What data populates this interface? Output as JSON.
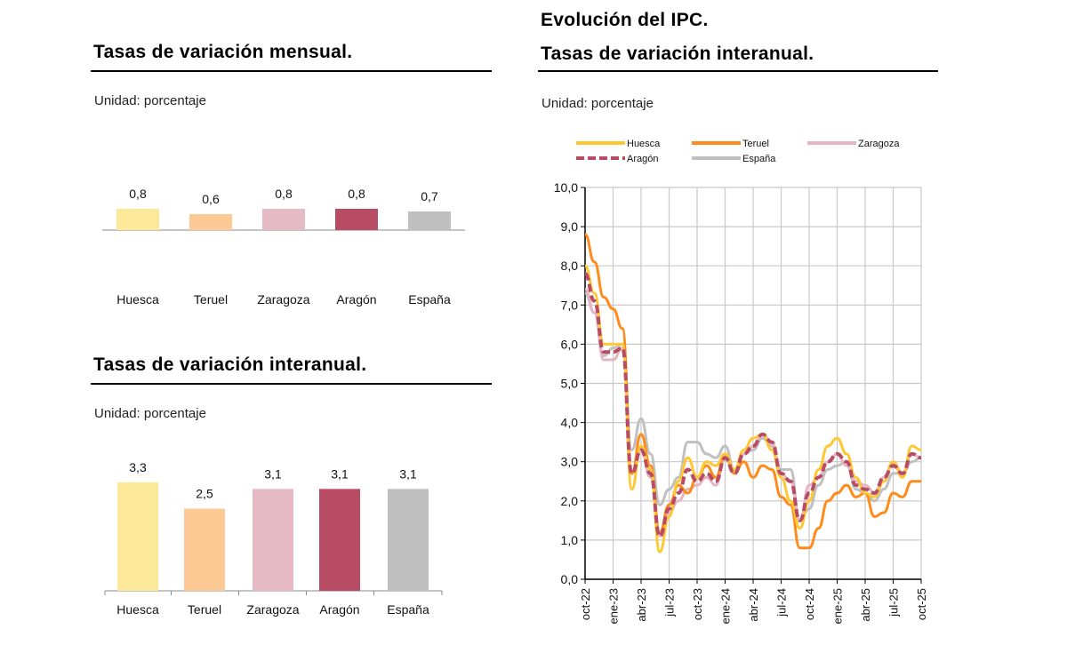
{
  "left_top": {
    "title": "Tasas de variación mensual.",
    "unit": "Unidad: porcentaje"
  },
  "left_bottom": {
    "title": "Tasas de variación interanual.",
    "unit": "Unidad: porcentaje"
  },
  "right": {
    "title1": "Evolución del IPC.",
    "title2": "Tasas de variación interanual.",
    "unit": "Unidad: porcentaje"
  },
  "colors": {
    "Huesca": "#fbe899",
    "Teruel": "#fdc994",
    "Zaragoza": "#e5bac5",
    "Aragón": "#b84c65",
    "España": "#bfbfbf"
  },
  "line_colors": {
    "Huesca": "#ffc832",
    "Teruel": "#ff8c1a",
    "Zaragoza": "#e6b4c2",
    "Aragón": "#b84c65",
    "España": "#c0c0c0"
  },
  "chart_data": [
    {
      "type": "bar",
      "title": "Tasas de variación mensual.",
      "categories": [
        "Huesca",
        "Teruel",
        "Zaragoza",
        "Aragón",
        "España"
      ],
      "values": [
        0.8,
        0.6,
        0.8,
        0.8,
        0.7
      ],
      "value_labels": [
        "0,8",
        "0,6",
        "0,8",
        "0,8",
        "0,7"
      ]
    },
    {
      "type": "bar",
      "title": "Tasas de variación interanual.",
      "categories": [
        "Huesca",
        "Teruel",
        "Zaragoza",
        "Aragón",
        "España"
      ],
      "values": [
        3.3,
        2.5,
        3.1,
        3.1,
        3.1
      ],
      "value_labels": [
        "3,3",
        "2,5",
        "3,1",
        "3,1",
        "3,1"
      ]
    },
    {
      "type": "line",
      "title": "Evolución del IPC. Tasas de variación interanual.",
      "ylim": [
        0,
        10
      ],
      "yticks": [
        "0,0",
        "1,0",
        "2,0",
        "3,0",
        "4,0",
        "5,0",
        "6,0",
        "7,0",
        "8,0",
        "9,0",
        "10,0"
      ],
      "xticks": [
        "oct-22",
        "ene-23",
        "abr-23",
        "jul-23",
        "oct-23",
        "ene-24",
        "abr-24",
        "jul-24",
        "oct-24",
        "ene-25",
        "abr-25",
        "jul-25",
        "oct-25"
      ],
      "x_range": [
        "oct-22",
        "oct-25"
      ],
      "frequency": "monthly",
      "grid": true,
      "legend": "top",
      "series": [
        {
          "name": "Huesca",
          "values": [
            8.0,
            7.3,
            6.0,
            6.0,
            6.0,
            2.3,
            3.4,
            2.8,
            0.7,
            1.6,
            2.5,
            3.1,
            2.6,
            3.0,
            2.9,
            3.2,
            2.8,
            3.3,
            3.6,
            3.7,
            3.3,
            2.6,
            2.0,
            1.3,
            2.0,
            2.8,
            3.4,
            3.6,
            3.2,
            2.6,
            2.2,
            2.1,
            2.5,
            3.0,
            2.6,
            3.4,
            3.3
          ]
        },
        {
          "name": "Teruel",
          "values": [
            8.8,
            8.1,
            7.2,
            6.9,
            6.4,
            2.7,
            3.7,
            2.9,
            1.2,
            1.9,
            2.4,
            2.2,
            2.6,
            2.9,
            2.6,
            3.2,
            2.7,
            3.0,
            2.6,
            2.9,
            2.8,
            2.1,
            1.9,
            0.8,
            0.8,
            1.3,
            2.0,
            2.2,
            2.4,
            2.1,
            2.2,
            1.6,
            1.7,
            2.2,
            2.1,
            2.5,
            2.5
          ]
        },
        {
          "name": "Zaragoza",
          "values": [
            7.4,
            6.8,
            5.6,
            5.6,
            5.9,
            2.7,
            3.3,
            2.6,
            1.1,
            1.7,
            2.0,
            2.3,
            2.4,
            2.6,
            2.4,
            3.1,
            2.7,
            3.2,
            3.4,
            3.7,
            3.5,
            2.7,
            2.5,
            1.5,
            2.4,
            2.6,
            3.0,
            3.2,
            2.9,
            2.5,
            2.4,
            2.2,
            2.6,
            3.0,
            2.7,
            3.2,
            3.1
          ]
        },
        {
          "name": "Aragón",
          "values": [
            7.8,
            7.1,
            5.8,
            5.8,
            5.9,
            2.7,
            3.3,
            2.7,
            1.1,
            1.8,
            2.2,
            2.8,
            2.5,
            2.7,
            2.5,
            3.1,
            2.7,
            3.2,
            3.4,
            3.7,
            3.5,
            2.7,
            2.5,
            1.5,
            2.2,
            2.6,
            3.0,
            3.2,
            3.0,
            2.4,
            2.3,
            2.2,
            2.6,
            2.9,
            2.7,
            3.2,
            3.1
          ]
        },
        {
          "name": "España",
          "values": [
            7.3,
            6.8,
            5.7,
            5.9,
            6.0,
            3.3,
            4.1,
            3.2,
            1.9,
            2.3,
            2.6,
            3.5,
            3.5,
            3.2,
            3.1,
            3.4,
            2.8,
            3.2,
            3.3,
            3.6,
            3.4,
            2.8,
            2.8,
            1.5,
            1.8,
            2.4,
            2.8,
            2.9,
            3.0,
            2.3,
            2.2,
            2.0,
            2.3,
            2.7,
            2.7,
            3.0,
            3.1
          ]
        }
      ]
    }
  ]
}
